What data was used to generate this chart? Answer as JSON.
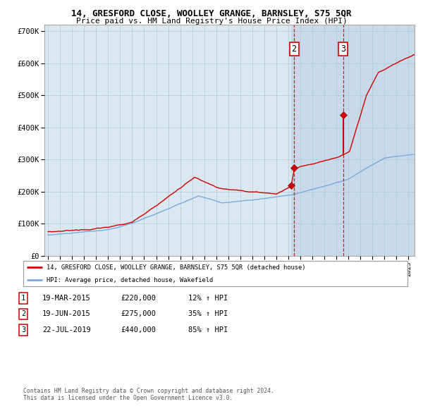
{
  "title": "14, GRESFORD CLOSE, WOOLLEY GRANGE, BARNSLEY, S75 5QR",
  "subtitle": "Price paid vs. HM Land Registry's House Price Index (HPI)",
  "legend_label_red": "14, GRESFORD CLOSE, WOOLLEY GRANGE, BARNSLEY, S75 5QR (detached house)",
  "legend_label_blue": "HPI: Average price, detached house, Wakefield",
  "footer1": "Contains HM Land Registry data © Crown copyright and database right 2024.",
  "footer2": "This data is licensed under the Open Government Licence v3.0.",
  "transactions": [
    {
      "num": 1,
      "date": "19-MAR-2015",
      "price": 220000,
      "pct": "12%",
      "direction": "↑"
    },
    {
      "num": 2,
      "date": "19-JUN-2015",
      "price": 275000,
      "pct": "35%",
      "direction": "↑"
    },
    {
      "num": 3,
      "date": "22-JUL-2019",
      "price": 440000,
      "pct": "85%",
      "direction": "↑"
    }
  ],
  "vline_dates": [
    2015.47,
    2019.56
  ],
  "marker_dates": [
    2015.22,
    2015.47,
    2019.56
  ],
  "marker_prices": [
    220000,
    275000,
    440000
  ],
  "label_nums": [
    2,
    3
  ],
  "label_dates": [
    2015.47,
    2019.56
  ],
  "bg_shaded_start": 2015.22,
  "ylim": [
    0,
    720000
  ],
  "yticks": [
    0,
    100000,
    200000,
    300000,
    400000,
    500000,
    600000,
    700000
  ],
  "ytick_labels": [
    "£0",
    "£100K",
    "£200K",
    "£300K",
    "£400K",
    "£500K",
    "£600K",
    "£700K"
  ],
  "xlim_start": 1994.7,
  "xlim_end": 2025.5,
  "red_color": "#cc0000",
  "blue_color": "#7aaadd",
  "chart_bg_color": "#dce8f0",
  "shaded_color": "#c8daea",
  "grid_color": "#b0c8d8",
  "title_fontsize": 9.0,
  "subtitle_fontsize": 8.0
}
